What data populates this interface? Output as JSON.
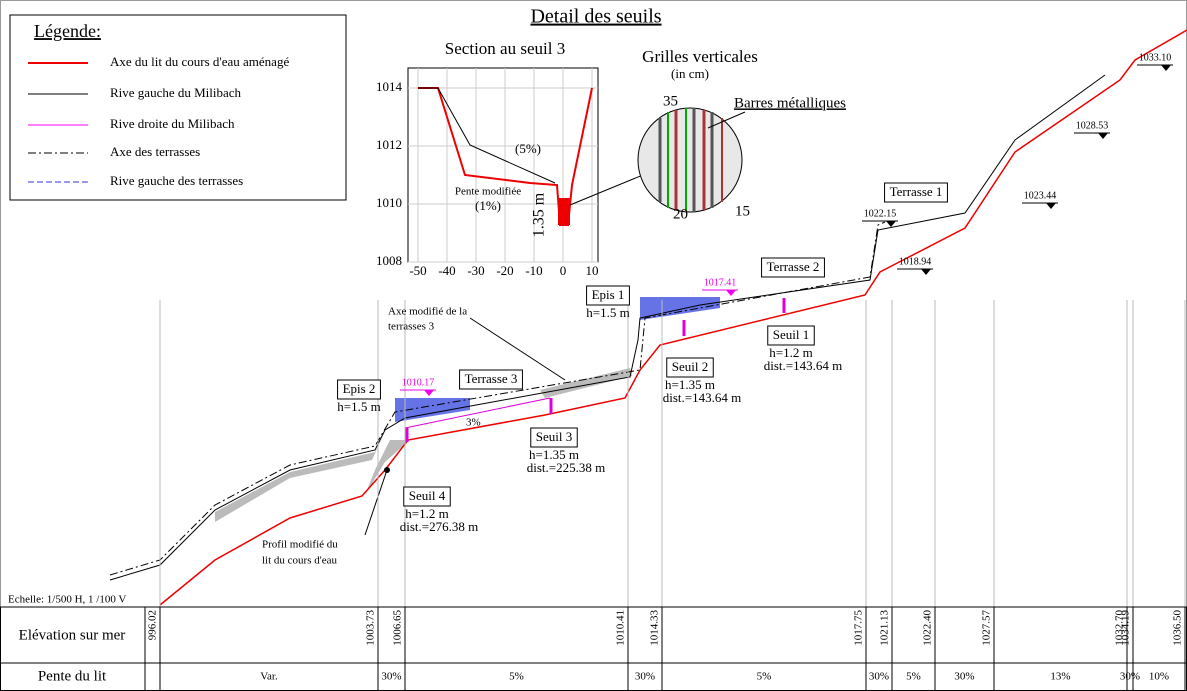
{
  "title": "Detail des seuils",
  "legend": {
    "title": "Légende:",
    "items": [
      "Axe du lit du cours d'eau aménagé",
      "Rive gauche du Milibach",
      "Rive droite du Milibach",
      "Axe des terrasses",
      "Rive gauche des terrasses"
    ]
  },
  "section": {
    "title": "Section au seuil 3",
    "yticks": [
      "1014",
      "1012",
      "1010",
      "1008"
    ],
    "xticks": [
      "-50",
      "-40",
      "-30",
      "-20",
      "-10",
      "0",
      "10"
    ],
    "labels": [
      "(5%)",
      "Pente modifiée",
      "(1%)",
      "1.35 m"
    ]
  },
  "grilles": {
    "title": "Grilles verticales",
    "unit": "(in cm)",
    "bars": "Barres métalliques",
    "dims": [
      "35",
      "20",
      "15"
    ]
  },
  "structures": [
    {
      "name": "Terrasse 1"
    },
    {
      "name": "Terrasse 2"
    },
    {
      "name": "Terrasse 3"
    },
    {
      "name": "Epis 1",
      "lines": [
        "h=1.5 m"
      ]
    },
    {
      "name": "Epis 2",
      "lines": [
        "h=1.5 m"
      ]
    },
    {
      "name": "Seuil 1",
      "lines": [
        "h=1.2 m",
        "dist.=143.64 m"
      ]
    },
    {
      "name": "Seuil 2",
      "lines": [
        "h=1.35 m",
        "dist.=143.64 m"
      ]
    },
    {
      "name": "Seuil 3",
      "lines": [
        "h=1.35 m",
        "dist.=225.38 m"
      ]
    },
    {
      "name": "Seuil 4",
      "lines": [
        "h=1.2 m",
        "dist.=276.38 m"
      ]
    }
  ],
  "notes": {
    "axe": [
      "Axe modifié de la",
      "terrasses 3"
    ],
    "profil": [
      "Profil modifié du",
      "lit du cours d'eau"
    ],
    "slope": "3%"
  },
  "levels": [
    "1033.10",
    "1028.53",
    "1023.44",
    "1022.15",
    "1018.94",
    "1017.41",
    "1010.17"
  ],
  "scale": "Echelle: 1/500 H, 1 /100 V",
  "table": {
    "rows": [
      {
        "label": "Elévation sur mer",
        "cells": [
          "996.02",
          "1003.73",
          "1006.65",
          "1010.41",
          "1014.33",
          "1017.75",
          "1021.13",
          "1022.40",
          "1027.57",
          "1032.70",
          "1034.19",
          "1036.50"
        ]
      },
      {
        "label": "Pente du lit",
        "cells": [
          "Var.",
          "30%",
          "5%",
          "30%",
          "5%",
          "30%",
          "5%",
          "30%",
          "13%",
          "30%",
          "10%"
        ]
      }
    ]
  }
}
